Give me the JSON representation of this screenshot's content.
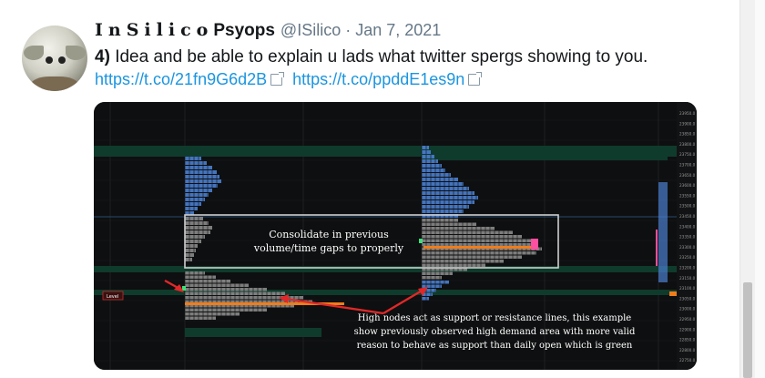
{
  "tweet": {
    "name_spaced": "InSilico",
    "name_rest": "Psyops",
    "handle": "@ISilico",
    "separator": "·",
    "date": "Jan 7, 2021",
    "text_number": "4)",
    "text": "Idea and be able to explain u lads what twitter spergs showing to you.",
    "link1": "https://t.co/21fn9G6d2B",
    "link2": "https://t.co/ppddE1es9n"
  },
  "media": {
    "overlay_box_line1": "Consolidate in previous",
    "overlay_box_line2": "volume/time gaps to properly",
    "annotation_line1": "High nodes act as support or resistance lines, this example",
    "annotation_line2": "show previously observed high demand area with more valid",
    "annotation_line3": "reason to behave as support than daily open which is green",
    "level_tag": "Level",
    "price_ticks": [
      "23950.0",
      "23900.0",
      "23850.0",
      "23800.0",
      "23750.0",
      "23700.0",
      "23650.0",
      "23600.0",
      "23550.0",
      "23500.0",
      "23450.0",
      "23400.0",
      "23350.0",
      "23300.0",
      "23250.0",
      "23200.0",
      "23150.0",
      "23100.0",
      "23050.0",
      "23000.0",
      "22950.0",
      "22900.0",
      "22850.0",
      "22800.0",
      "22750.0"
    ],
    "colors": {
      "green_band": "#0f3b2c",
      "blue": "#4a7fd0",
      "orange": "#f07d1a",
      "grey": "#8a8a8a",
      "pink": "#ff4fa0",
      "red_arrow": "#e02828"
    }
  }
}
